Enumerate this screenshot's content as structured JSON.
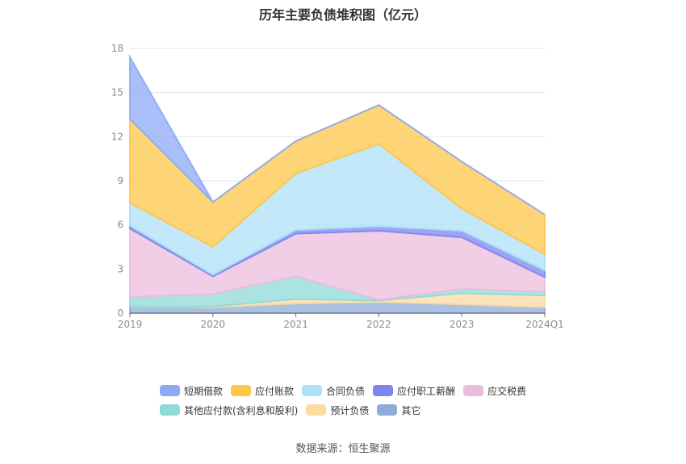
{
  "title": "历年主要负债堆积图（亿元）",
  "source": "数据来源：恒生聚源",
  "chart_data": {
    "type": "area",
    "stacked": true,
    "x": [
      "2019",
      "2020",
      "2021",
      "2022",
      "2023",
      "2024Q1"
    ],
    "ylim": [
      0,
      18
    ],
    "yticks": [
      0,
      3,
      6,
      9,
      12,
      15,
      18
    ],
    "grid": true,
    "legend_position": "bottom",
    "series": [
      {
        "name": "其它",
        "color": "#8eacd8",
        "values": [
          0.45,
          0.4,
          0.65,
          0.75,
          0.6,
          0.4
        ]
      },
      {
        "name": "预计负债",
        "color": "#fddba3",
        "values": [
          0.0,
          0.05,
          0.3,
          0.1,
          0.75,
          0.8
        ]
      },
      {
        "name": "其他应付款(含利息和股利)",
        "color": "#8fd9d8",
        "values": [
          0.65,
          0.85,
          1.55,
          0.05,
          0.3,
          0.25
        ]
      },
      {
        "name": "应交税费",
        "color": "#ecbcdd",
        "values": [
          4.65,
          1.2,
          2.9,
          4.7,
          3.5,
          1.0
        ]
      },
      {
        "name": "应付职工薪酬",
        "color": "#7c86f0",
        "values": [
          0.2,
          0.1,
          0.25,
          0.3,
          0.45,
          0.45
        ]
      },
      {
        "name": "合同负债",
        "color": "#aee0f7",
        "values": [
          1.55,
          1.9,
          3.85,
          5.6,
          1.5,
          1.1
        ]
      },
      {
        "name": "应付账款",
        "color": "#fdc748",
        "values": [
          5.7,
          3.05,
          2.2,
          2.65,
          3.2,
          2.7
        ]
      },
      {
        "name": "短期借款",
        "color": "#8eaaf7",
        "values": [
          4.2,
          0.0,
          0.0,
          0.0,
          0.0,
          0.0
        ]
      }
    ]
  },
  "legend": {
    "row1": [
      {
        "label": "短期借款",
        "color": "#8eaaf7"
      },
      {
        "label": "应付账款",
        "color": "#fdc748"
      },
      {
        "label": "合同负债",
        "color": "#aee0f7"
      },
      {
        "label": "应付职工薪酬",
        "color": "#7c86f0"
      },
      {
        "label": "应交税费",
        "color": "#ecbcdd"
      }
    ],
    "row2": [
      {
        "label": "其他应付款(含利息和股利)",
        "color": "#8fd9d8"
      },
      {
        "label": "预计负债",
        "color": "#fddba3"
      },
      {
        "label": "其它",
        "color": "#8eacd8"
      }
    ]
  }
}
